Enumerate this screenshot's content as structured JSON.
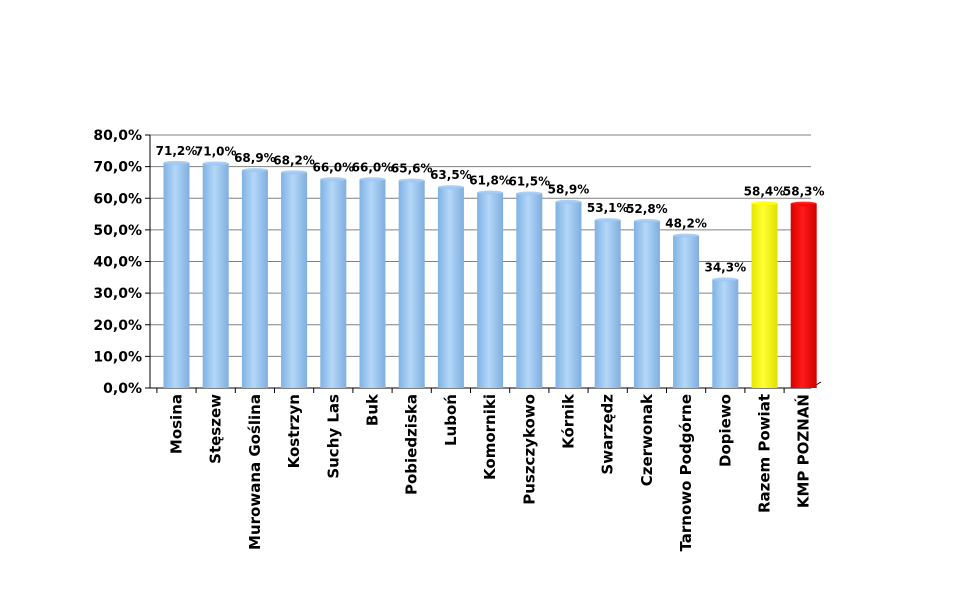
{
  "chart_data": {
    "type": "bar",
    "title": "",
    "xlabel": "",
    "ylabel": "",
    "ylim": [
      0,
      80
    ],
    "y_tick_labels": [
      "0,0%",
      "10,0%",
      "20,0%",
      "30,0%",
      "40,0%",
      "50,0%",
      "60,0%",
      "70,0%",
      "80,0%"
    ],
    "grid": true,
    "legend": "none",
    "categories": [
      "Mosina",
      "Stęszew",
      "Murowana Goślina",
      "Kostrzyn",
      "Suchy Las",
      "Buk",
      "Pobiedziska",
      "Luboń",
      "Komorniki",
      "Puszczykowo",
      "Kórnik",
      "Swarzędz",
      "Czerwonak",
      "Tarnowo Podgórne",
      "Dopiewo",
      "Razem Powiat",
      "KMP POZNAŃ"
    ],
    "values": [
      71.2,
      71.0,
      68.9,
      68.2,
      66.0,
      66.0,
      65.6,
      63.5,
      61.8,
      61.5,
      58.9,
      53.1,
      52.8,
      48.2,
      34.3,
      58.4,
      58.3
    ],
    "data_labels": [
      "71,2%",
      "71,0%",
      "68,9%",
      "68,2%",
      "66,0%",
      "66,0%",
      "65,6%",
      "63,5%",
      "61,8%",
      "61,5%",
      "58,9%",
      "53,1%",
      "52,8%",
      "48,2%",
      "34,3%",
      "58,4%",
      "58,3%"
    ],
    "colors": {
      "default": "#9DC8F2",
      "Razem Powiat": "#FFFF00",
      "KMP POZNAŃ": "#FF0000"
    }
  }
}
